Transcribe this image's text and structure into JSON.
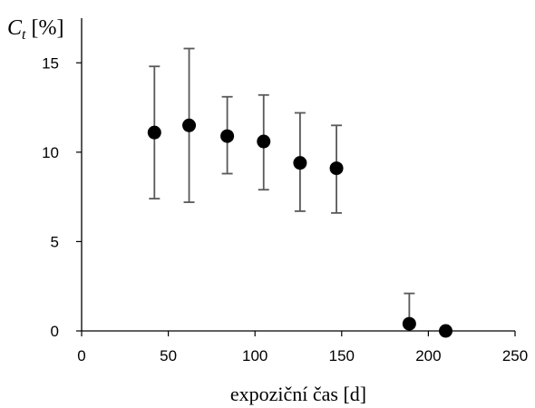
{
  "chart_data": {
    "type": "scatter",
    "title": "",
    "xlabel": "expoziční čas [d]",
    "ylabel": {
      "symbol": "C",
      "subscript": "t",
      "unit": "[%]"
    },
    "xlim": [
      0,
      250
    ],
    "ylim": [
      0,
      17.5
    ],
    "x_ticks": [
      0,
      50,
      100,
      150,
      200,
      250
    ],
    "y_ticks": [
      0,
      5,
      10,
      15
    ],
    "grid": false,
    "legend": "none",
    "marker_color": "#000000",
    "errorbar_color": "#595959",
    "points": [
      {
        "x": 42,
        "y": 11.1,
        "err_low": 7.4,
        "err_high": 14.8
      },
      {
        "x": 62,
        "y": 11.5,
        "err_low": 7.2,
        "err_high": 15.8
      },
      {
        "x": 84,
        "y": 10.9,
        "err_low": 8.8,
        "err_high": 13.1
      },
      {
        "x": 105,
        "y": 10.6,
        "err_low": 7.9,
        "err_high": 13.2
      },
      {
        "x": 126,
        "y": 9.4,
        "err_low": 6.7,
        "err_high": 12.2
      },
      {
        "x": 147,
        "y": 9.1,
        "err_low": 6.6,
        "err_high": 11.5
      },
      {
        "x": 189,
        "y": 0.4,
        "err_low": null,
        "err_high": 2.1
      },
      {
        "x": 210,
        "y": 0.0,
        "err_low": null,
        "err_high": null
      }
    ]
  }
}
